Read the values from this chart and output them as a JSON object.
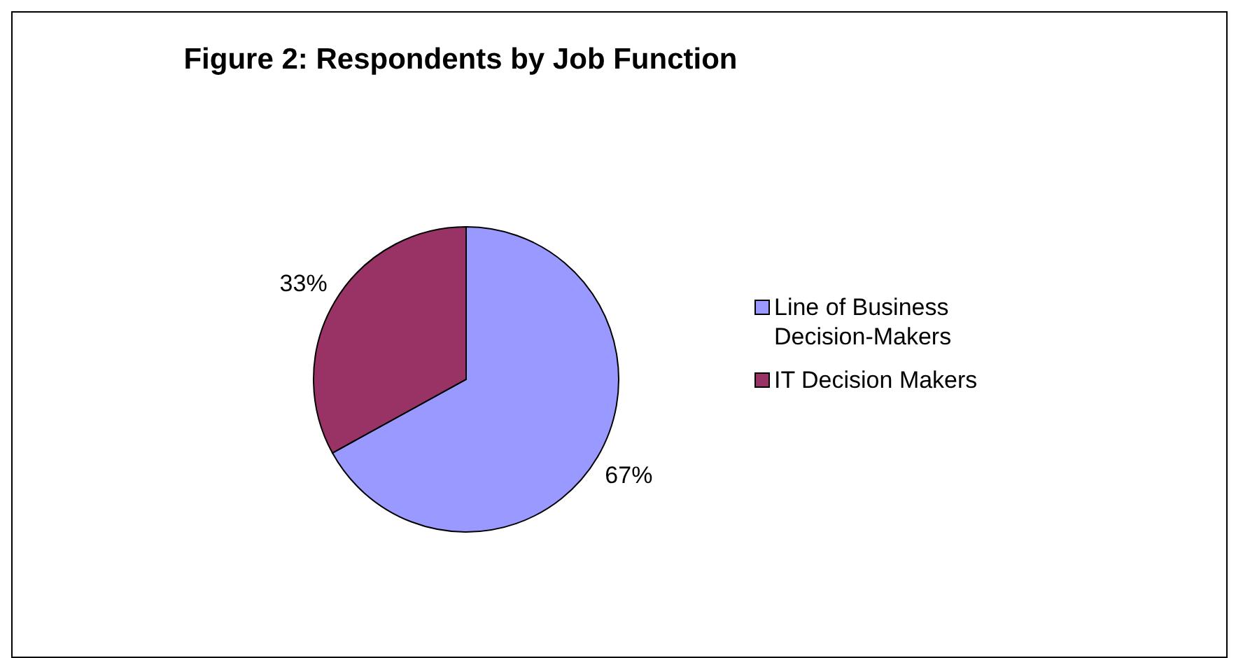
{
  "chart_data": {
    "type": "pie",
    "title": "Figure 2: Respondents by Job Function",
    "categories": [
      "Line of Business Decision-Makers",
      "IT Decision Makers"
    ],
    "values": [
      67,
      33
    ],
    "colors": [
      "#9999ff",
      "#993366"
    ],
    "value_labels": [
      "67%",
      "33%"
    ],
    "legend": "right"
  }
}
